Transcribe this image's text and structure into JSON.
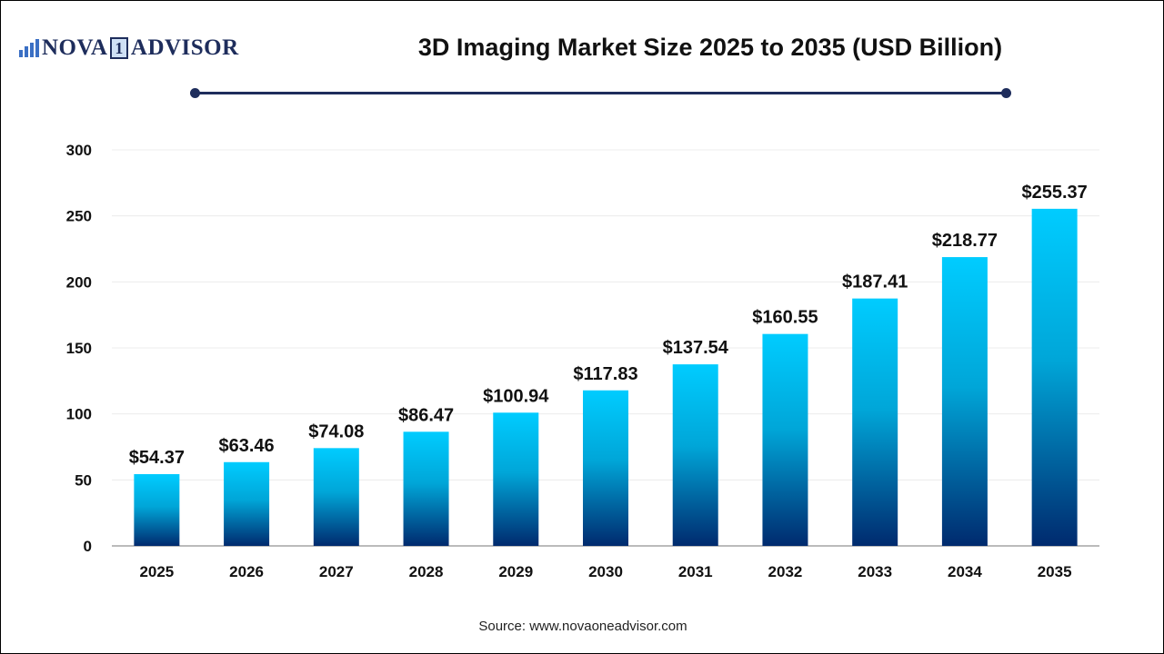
{
  "logo": {
    "text_left": "NOVA",
    "text_mid": "1",
    "text_right": "ADVISOR"
  },
  "source": "Source: www.novaoneadvisor.com",
  "colors": {
    "bar_top": "#00CCFF",
    "bar_bottom": "#002A6E",
    "title_rule": "#1e2d5c"
  },
  "chart_data": {
    "type": "bar",
    "title": "3D Imaging Market Size 2025 to 2035 (USD Billion)",
    "xlabel": "",
    "ylabel": "",
    "categories": [
      "2025",
      "2026",
      "2027",
      "2028",
      "2029",
      "2030",
      "2031",
      "2032",
      "2033",
      "2034",
      "2035"
    ],
    "values": [
      54.37,
      63.46,
      74.08,
      86.47,
      100.94,
      117.83,
      137.54,
      160.55,
      187.41,
      218.77,
      255.37
    ],
    "data_labels": [
      "$54.37",
      "$63.46",
      "$74.08",
      "$86.47",
      "$100.94",
      "$117.83",
      "$137.54",
      "$160.55",
      "$187.41",
      "$218.77",
      "$255.37"
    ],
    "ylim": [
      0,
      300
    ],
    "yticks": [
      0,
      50,
      100,
      150,
      200,
      250,
      300
    ],
    "grid": true,
    "legend": "none"
  }
}
